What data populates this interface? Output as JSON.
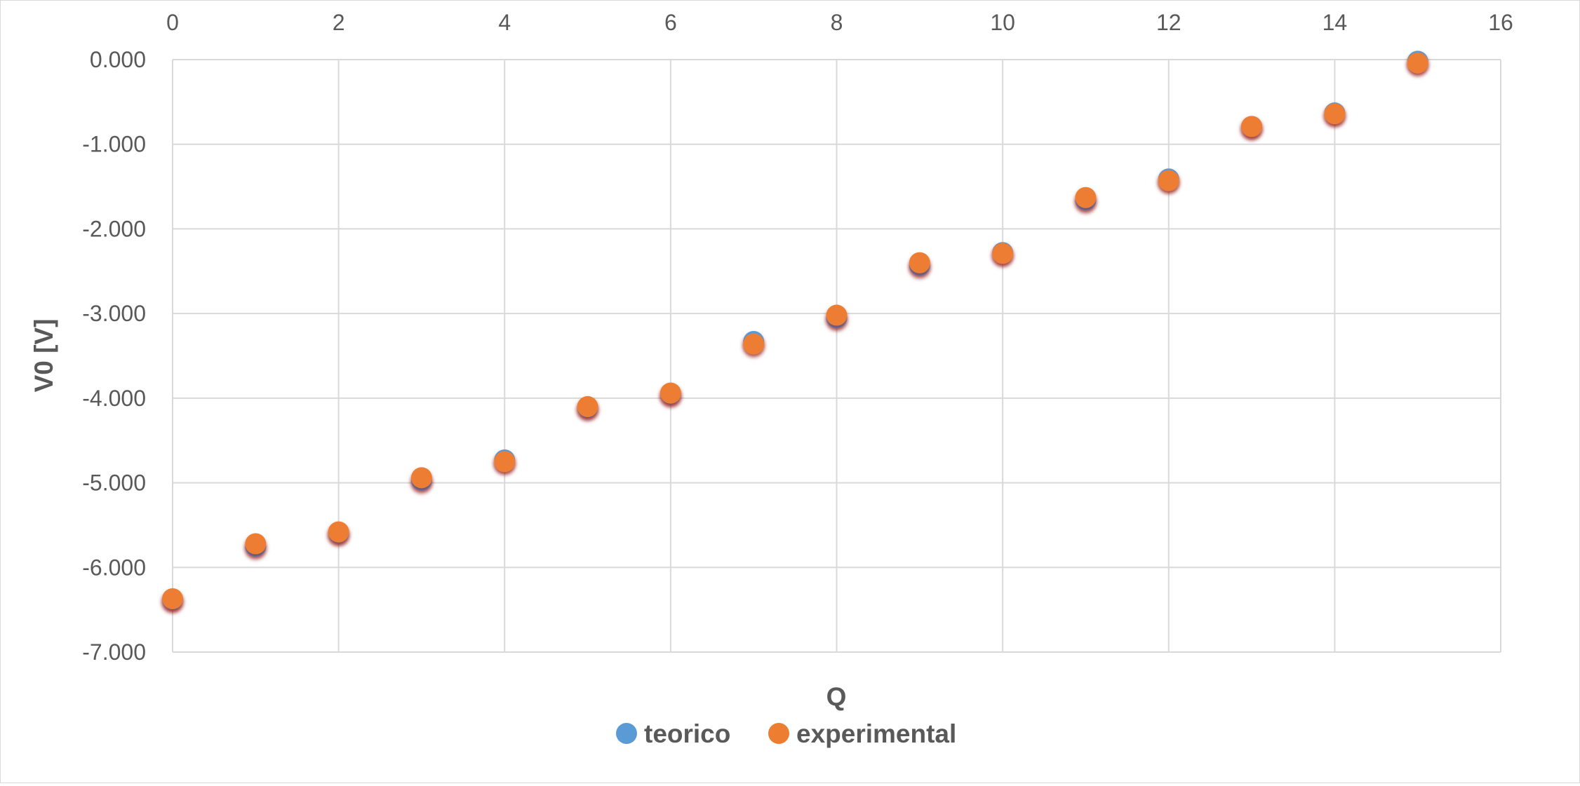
{
  "chart_data": {
    "type": "scatter",
    "xlabel": "Q",
    "ylabel": "V0 [V]",
    "xlim": [
      0,
      16
    ],
    "ylim": [
      -7,
      0
    ],
    "x_ticks": [
      "0",
      "2",
      "4",
      "6",
      "8",
      "10",
      "12",
      "14",
      "16"
    ],
    "y_ticks": [
      "0.000",
      "-1.000",
      "-2.000",
      "-3.000",
      "-4.000",
      "-5.000",
      "-6.000",
      "-7.000"
    ],
    "x_axis_position": "top",
    "grid": true,
    "legend_position": "bottom",
    "series": [
      {
        "name": "teorico",
        "color": "#5b9bd5",
        "x": [
          0,
          1,
          2,
          3,
          4,
          5,
          6,
          7,
          8,
          9,
          10,
          11,
          12,
          13,
          14,
          15
        ],
        "y": [
          -6.38,
          -5.75,
          -5.59,
          -4.97,
          -4.73,
          -4.11,
          -3.95,
          -3.33,
          -3.05,
          -2.43,
          -2.28,
          -1.66,
          -1.41,
          -0.79,
          -0.63,
          -0.02
        ]
      },
      {
        "name": "experimental",
        "color": "#ed7d31",
        "x": [
          0,
          1,
          2,
          3,
          4,
          5,
          6,
          7,
          8,
          9,
          10,
          11,
          12,
          13,
          14,
          15
        ],
        "y": [
          -6.37,
          -5.72,
          -5.58,
          -4.94,
          -4.75,
          -4.1,
          -3.94,
          -3.36,
          -3.02,
          -2.4,
          -2.29,
          -1.63,
          -1.43,
          -0.79,
          -0.64,
          -0.04
        ]
      }
    ]
  }
}
